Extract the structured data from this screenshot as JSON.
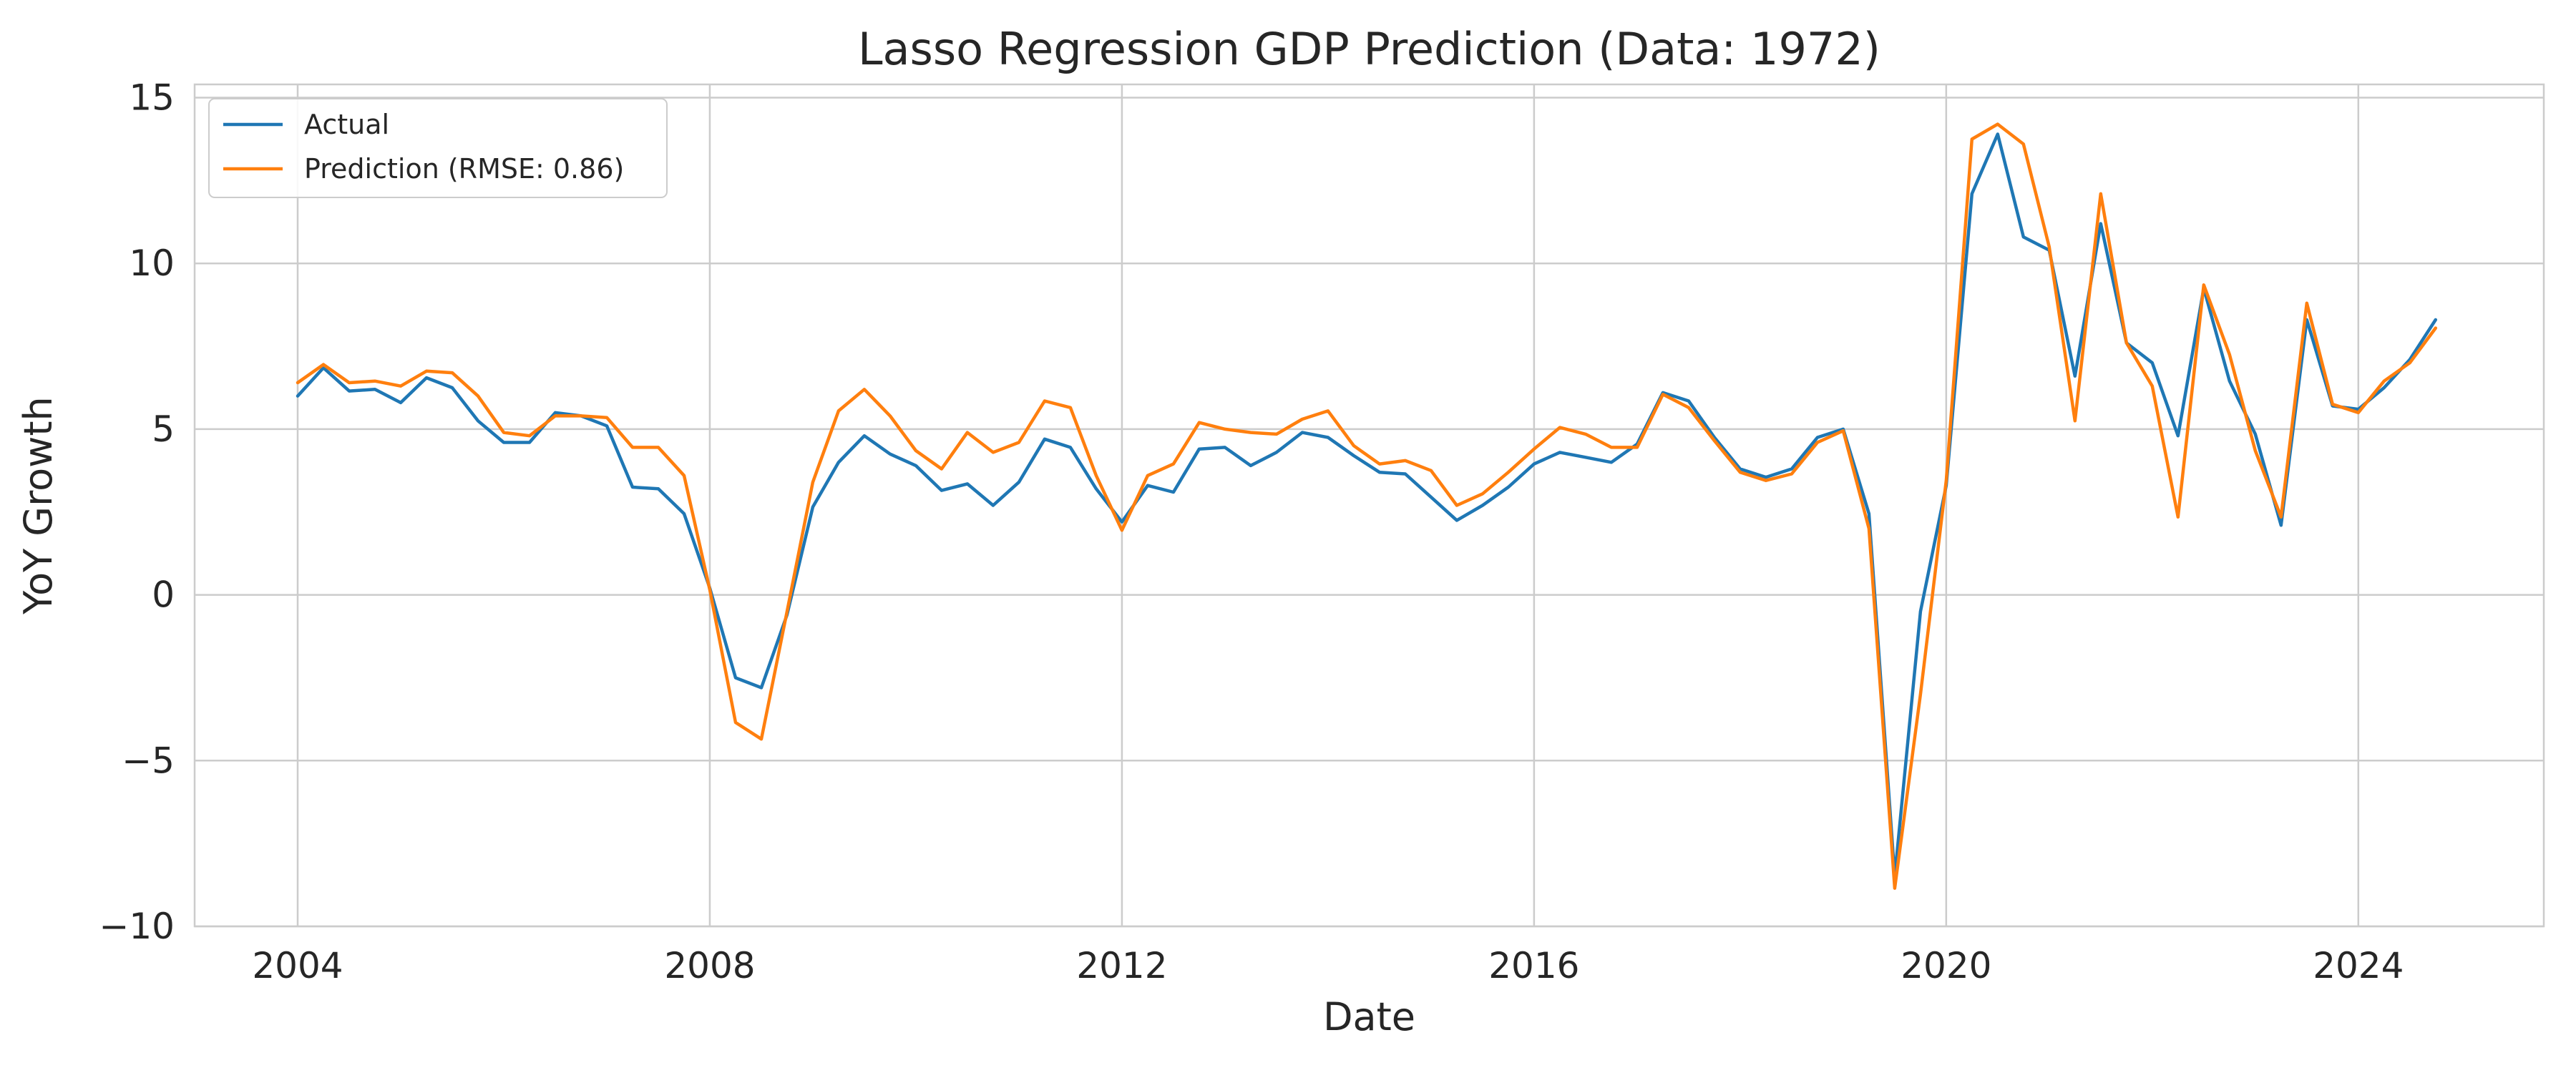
{
  "chart_data": {
    "type": "line",
    "title": "Lasso Regression GDP Prediction (Data: 1972)",
    "xlabel": "Date",
    "ylabel": "YoY Growth",
    "xlim": [
      2003.0,
      2025.8
    ],
    "ylim": [
      -10,
      15.4
    ],
    "x_ticks": [
      2004,
      2008,
      2012,
      2016,
      2020,
      2024
    ],
    "x_tick_labels": [
      "2004",
      "2008",
      "2012",
      "2016",
      "2020",
      "2024"
    ],
    "y_ticks": [
      -10,
      -5,
      0,
      5,
      10,
      15
    ],
    "y_tick_labels": [
      "−10",
      "−5",
      "0",
      "5",
      "10",
      "15"
    ],
    "grid": true,
    "legend_position": "top-left",
    "x": [
      2004.0,
      2004.25,
      2004.5,
      2004.75,
      2005.0,
      2005.25,
      2005.5,
      2005.75,
      2006.0,
      2006.25,
      2006.5,
      2006.75,
      2007.0,
      2007.25,
      2007.5,
      2007.75,
      2008.0,
      2008.25,
      2008.5,
      2008.75,
      2009.0,
      2009.25,
      2009.5,
      2009.75,
      2010.0,
      2010.25,
      2010.5,
      2010.75,
      2011.0,
      2011.25,
      2011.5,
      2011.75,
      2012.0,
      2012.25,
      2012.5,
      2012.75,
      2013.0,
      2013.25,
      2013.5,
      2013.75,
      2014.0,
      2014.25,
      2014.5,
      2014.75,
      2015.0,
      2015.25,
      2015.5,
      2015.75,
      2016.0,
      2016.25,
      2016.5,
      2016.75,
      2017.0,
      2017.25,
      2017.5,
      2017.75,
      2018.0,
      2018.25,
      2018.5,
      2018.75,
      2019.0,
      2019.25,
      2019.5,
      2019.75,
      2020.0,
      2020.25,
      2020.5,
      2020.75,
      2021.0,
      2021.25,
      2021.5,
      2021.75,
      2022.0,
      2022.25,
      2022.5,
      2022.75,
      2023.0,
      2023.25,
      2023.5,
      2023.75,
      2024.0,
      2024.25,
      2024.5,
      2024.75
    ],
    "series": [
      {
        "name": "Actual",
        "color": "#1f77b4",
        "values": [
          6.0,
          6.85,
          6.15,
          6.2,
          5.8,
          6.55,
          6.25,
          5.25,
          4.6,
          4.6,
          5.5,
          5.4,
          5.1,
          3.25,
          3.2,
          2.45,
          0.2,
          -2.5,
          -2.8,
          -0.6,
          2.65,
          4.0,
          4.8,
          4.25,
          3.9,
          3.15,
          3.35,
          2.7,
          3.4,
          4.7,
          4.45,
          3.2,
          2.2,
          3.3,
          3.1,
          4.4,
          4.45,
          3.9,
          4.3,
          4.9,
          4.75,
          4.2,
          3.7,
          3.65,
          2.95,
          2.25,
          2.7,
          3.25,
          3.95,
          4.3,
          4.15,
          4.0,
          4.55,
          6.1,
          5.85,
          4.75,
          3.8,
          3.55,
          3.8,
          4.75,
          5.0,
          2.45,
          -8.5,
          -0.5,
          3.3,
          12.1,
          13.9,
          10.8,
          10.4,
          6.6,
          11.2,
          7.6,
          7.0,
          4.8,
          9.25,
          6.45,
          4.85,
          2.1,
          8.3,
          5.7,
          5.6,
          6.25,
          7.1,
          8.3
        ]
      },
      {
        "name": "Prediction (RMSE: 0.86)",
        "color": "#ff7f0e",
        "values": [
          6.4,
          6.95,
          6.4,
          6.45,
          6.3,
          6.75,
          6.7,
          6.0,
          4.9,
          4.8,
          5.4,
          5.4,
          5.35,
          4.45,
          4.45,
          3.6,
          0.15,
          -3.85,
          -4.35,
          -0.5,
          3.4,
          5.55,
          6.2,
          5.4,
          4.35,
          3.8,
          4.9,
          4.3,
          4.6,
          5.85,
          5.65,
          3.6,
          1.95,
          3.6,
          3.95,
          5.2,
          5.0,
          4.9,
          4.85,
          5.3,
          5.55,
          4.5,
          3.95,
          4.05,
          3.75,
          2.7,
          3.05,
          3.7,
          4.4,
          5.05,
          4.85,
          4.45,
          4.45,
          6.05,
          5.65,
          4.65,
          3.7,
          3.45,
          3.65,
          4.6,
          4.95,
          2.0,
          -8.85,
          -3.0,
          3.45,
          13.75,
          14.2,
          13.6,
          10.5,
          5.25,
          12.1,
          7.6,
          6.3,
          2.35,
          9.35,
          7.25,
          4.35,
          2.35,
          8.8,
          5.75,
          5.5,
          6.45,
          7.0,
          8.05
        ]
      }
    ]
  }
}
